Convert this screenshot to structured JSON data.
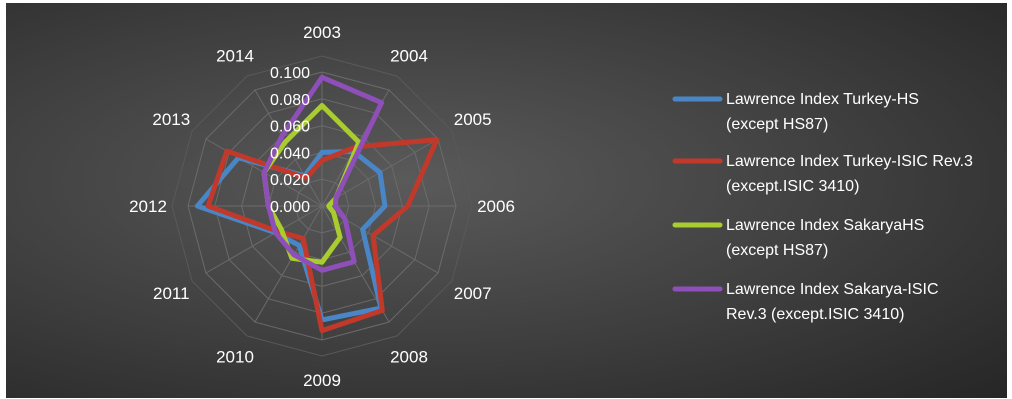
{
  "chart_data": {
    "type": "radar",
    "categories": [
      "2003",
      "2004",
      "2005",
      "2006",
      "2007",
      "2008",
      "2009",
      "2010",
      "2011",
      "2012",
      "2013",
      "2014"
    ],
    "r_ticks": [
      "0.000",
      "0.020",
      "0.040",
      "0.060",
      "0.080",
      "0.100"
    ],
    "rlim": [
      0,
      0.1
    ],
    "grid": true,
    "legend_position": "right",
    "series": [
      {
        "name": "Lawrence Index Turkey-HS (except HS87)",
        "color": "#4a86c5",
        "values": [
          0.04,
          0.047,
          0.05,
          0.047,
          0.035,
          0.088,
          0.085,
          0.034,
          0.04,
          0.093,
          0.072,
          0.026
        ]
      },
      {
        "name": "Lawrence Index Turkey-ISIC Rev.3 (except.ISIC 3410)",
        "color": "#c0392b",
        "values": [
          0.034,
          0.051,
          0.099,
          0.064,
          0.044,
          0.09,
          0.093,
          0.028,
          0.038,
          0.085,
          0.082,
          0.024
        ]
      },
      {
        "name": "Lawrence Index SakaryaHS (except HS87)",
        "color": "#a9cc2e",
        "values": [
          0.075,
          0.055,
          0.012,
          0.005,
          0.01,
          0.027,
          0.042,
          0.045,
          0.035,
          0.04,
          0.05,
          0.055
        ]
      },
      {
        "name": "Lawrence Index Sakarya-ISIC Rev.3 (except.ISIC 3410)",
        "color": "#8f4fb8",
        "values": [
          0.096,
          0.089,
          0.012,
          0.01,
          0.02,
          0.048,
          0.048,
          0.042,
          0.04,
          0.04,
          0.05,
          0.06
        ]
      }
    ],
    "legend": [
      {
        "line1": "Lawrence Index Turkey-HS",
        "line2": "(except HS87)"
      },
      {
        "line1": "Lawrence Index Turkey-ISIC Rev.3",
        "line2": "(except.ISIC 3410)"
      },
      {
        "line1": "Lawrence Index SakaryaHS",
        "line2": "(except HS87)"
      },
      {
        "line1": "Lawrence Index Sakarya-ISIC",
        "line2": "Rev.3 (except.ISIC 3410)"
      }
    ]
  }
}
